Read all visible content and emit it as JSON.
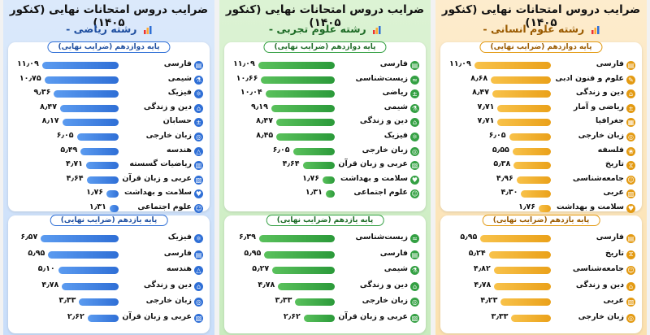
{
  "panels": [
    {
      "key": "riazi",
      "title": "ضرایب دروس امتحانات نهایی (کنکور ۱۴۰۵)",
      "subtitle": "رشته ریاضی -",
      "grade12_header": "پایه دوازدهم (ضرایب نهایی)",
      "grade11_header": "پایه یازدهم (ضرایب نهایی)"
    },
    {
      "key": "tajrobi",
      "title": "ضرایب دروس امتحانات نهایی (کنکور ۱۴۰۵)",
      "subtitle": "رشته علوم تجربی -",
      "grade12_header": "پایه دوازدهم (ضرایب نهایی)",
      "grade11_header": "پایه یازدهم (ضرایب نهایی)"
    },
    {
      "key": "ensani",
      "title": "ضرایب دروس امتحانات نهایی (کنکور ۱۴۰۵)",
      "subtitle": "رشته علوم انسانی -",
      "grade12_header": "پایه دوازدهم (ضرایب نهایی)",
      "grade11_header": "پایه یازدهم (ضرایب نهایی)"
    }
  ],
  "colors": {
    "riazi": "#2f6fd6",
    "tajrobi": "#34a043",
    "ensani": "#e39a12"
  },
  "chart_data": [
    {
      "type": "bar",
      "panel": "riazi",
      "grade": "پایه دوازدهم (ضرایب نهایی)",
      "categories": [
        "فارسی",
        "شیمی",
        "فیزیک",
        "دین و زندگی",
        "حسابان",
        "زبان خارجی",
        "هندسه",
        "ریاضیات گسسته",
        "عربی و زبان قرآن",
        "سلامت و بهداشت",
        "علوم اجتماعی"
      ],
      "values": [
        11.09,
        10.75,
        9.36,
        8.47,
        8.17,
        6.05,
        5.49,
        4.71,
        4.64,
        1.76,
        1.31
      ],
      "value_labels": [
        "۱۱٫۰۹",
        "۱۰٫۷۵",
        "۹٫۳۶",
        "۸٫۴۷",
        "۸٫۱۷",
        "۶٫۰۵",
        "۵٫۴۹",
        "۴٫۷۱",
        "۴٫۶۴",
        "۱٫۷۶",
        "۱٫۳۱"
      ],
      "icons": [
        "book-icon",
        "flask-icon",
        "atom-icon",
        "mosque-icon",
        "calculator-icon",
        "globe-icon",
        "triangle-icon",
        "chart-icon",
        "book-open-icon",
        "heart-icon",
        "people-icon"
      ],
      "xlim": [
        0,
        12
      ]
    },
    {
      "type": "bar",
      "panel": "riazi",
      "grade": "پایه یازدهم (ضرایب نهایی)",
      "categories": [
        "فیزیک",
        "فارسی",
        "هندسه",
        "دین و زندگی",
        "زبان خارجی",
        "عربی و زبان قرآن"
      ],
      "values": [
        6.57,
        5.95,
        5.1,
        4.78,
        3.33,
        2.62
      ],
      "value_labels": [
        "۶٫۵۷",
        "۵٫۹۵",
        "۵٫۱۰",
        "۴٫۷۸",
        "۳٫۳۳",
        "۲٫۶۲"
      ],
      "icons": [
        "atom-icon",
        "book-icon",
        "triangle-icon",
        "mosque-icon",
        "globe-icon",
        "book-open-icon"
      ],
      "xlim": [
        0,
        7
      ]
    },
    {
      "type": "bar",
      "panel": "tajrobi",
      "grade": "پایه دوازدهم (ضرایب نهایی)",
      "categories": [
        "فارسی",
        "زیست‌شناسی",
        "ریاضی",
        "شیمی",
        "دین و زندگی",
        "فیزیک",
        "زبان خارجی",
        "عربی و زبان قرآن",
        "سلامت و بهداشت",
        "علوم اجتماعی"
      ],
      "values": [
        11.09,
        10.66,
        10.04,
        9.19,
        8.47,
        8.45,
        6.05,
        4.64,
        1.76,
        1.31
      ],
      "value_labels": [
        "۱۱٫۰۹",
        "۱۰٫۶۶",
        "۱۰٫۰۴",
        "۹٫۱۹",
        "۸٫۴۷",
        "۸٫۴۵",
        "۶٫۰۵",
        "۴٫۶۴",
        "۱٫۷۶",
        "۱٫۳۱"
      ],
      "icons": [
        "book-icon",
        "dna-icon",
        "calculator-icon",
        "flask-icon",
        "mosque-icon",
        "atom-icon",
        "globe-icon",
        "book-open-icon",
        "heart-icon",
        "people-icon"
      ],
      "xlim": [
        0,
        12
      ]
    },
    {
      "type": "bar",
      "panel": "tajrobi",
      "grade": "پایه یازدهم (ضرایب نهایی)",
      "categories": [
        "زیست‌شناسی",
        "فارسی",
        "شیمی",
        "دین و زندگی",
        "زبان خارجی",
        "عربی و زبان قرآن"
      ],
      "values": [
        6.39,
        5.95,
        5.27,
        4.78,
        3.33,
        2.62
      ],
      "value_labels": [
        "۶٫۳۹",
        "۵٫۹۵",
        "۵٫۲۷",
        "۴٫۷۸",
        "۳٫۳۳",
        "۲٫۶۲"
      ],
      "icons": [
        "dna-icon",
        "book-icon",
        "flask-icon",
        "mosque-icon",
        "globe-icon",
        "book-open-icon"
      ],
      "xlim": [
        0,
        7
      ]
    },
    {
      "type": "bar",
      "panel": "ensani",
      "grade": "پایه دوازدهم (ضرایب نهایی)",
      "categories": [
        "فارسی",
        "علوم و فنون ادبی",
        "دین و زندگی",
        "ریاضی و آمار",
        "جغرافیا",
        "زبان خارجی",
        "فلسفه",
        "تاریخ",
        "جامعه‌شناسی",
        "عربی",
        "سلامت و بهداشت"
      ],
      "values": [
        11.09,
        8.68,
        8.47,
        7.71,
        7.71,
        6.05,
        5.55,
        5.38,
        4.96,
        4.3,
        1.76
      ],
      "value_labels": [
        "۱۱٫۰۹",
        "۸٫۶۸",
        "۸٫۴۷",
        "۷٫۷۱",
        "۷٫۷۱",
        "۶٫۰۵",
        "۵٫۵۵",
        "۵٫۳۸",
        "۴٫۹۶",
        "۴٫۳۰",
        "۱٫۷۶"
      ],
      "icons": [
        "book-icon",
        "quill-icon",
        "mosque-icon",
        "calculator-icon",
        "map-icon",
        "globe-icon",
        "brain-icon",
        "hourglass-icon",
        "people-icon",
        "book-open-icon",
        "heart-icon"
      ],
      "xlim": [
        0,
        12
      ]
    },
    {
      "type": "bar",
      "panel": "ensani",
      "grade": "پایه یازدهم (ضرایب نهایی)",
      "categories": [
        "فارسی",
        "تاریخ",
        "جامعه‌شناسی",
        "دین و زندگی",
        "عربی",
        "زبان خارجی"
      ],
      "values": [
        5.95,
        5.24,
        4.82,
        4.78,
        4.23,
        3.33
      ],
      "value_labels": [
        "۵٫۹۵",
        "۵٫۲۴",
        "۴٫۸۲",
        "۴٫۷۸",
        "۴٫۲۳",
        "۳٫۳۳"
      ],
      "icons": [
        "book-icon",
        "hourglass-icon",
        "people-icon",
        "mosque-icon",
        "book-open-icon",
        "globe-icon"
      ],
      "xlim": [
        0,
        7
      ]
    }
  ]
}
